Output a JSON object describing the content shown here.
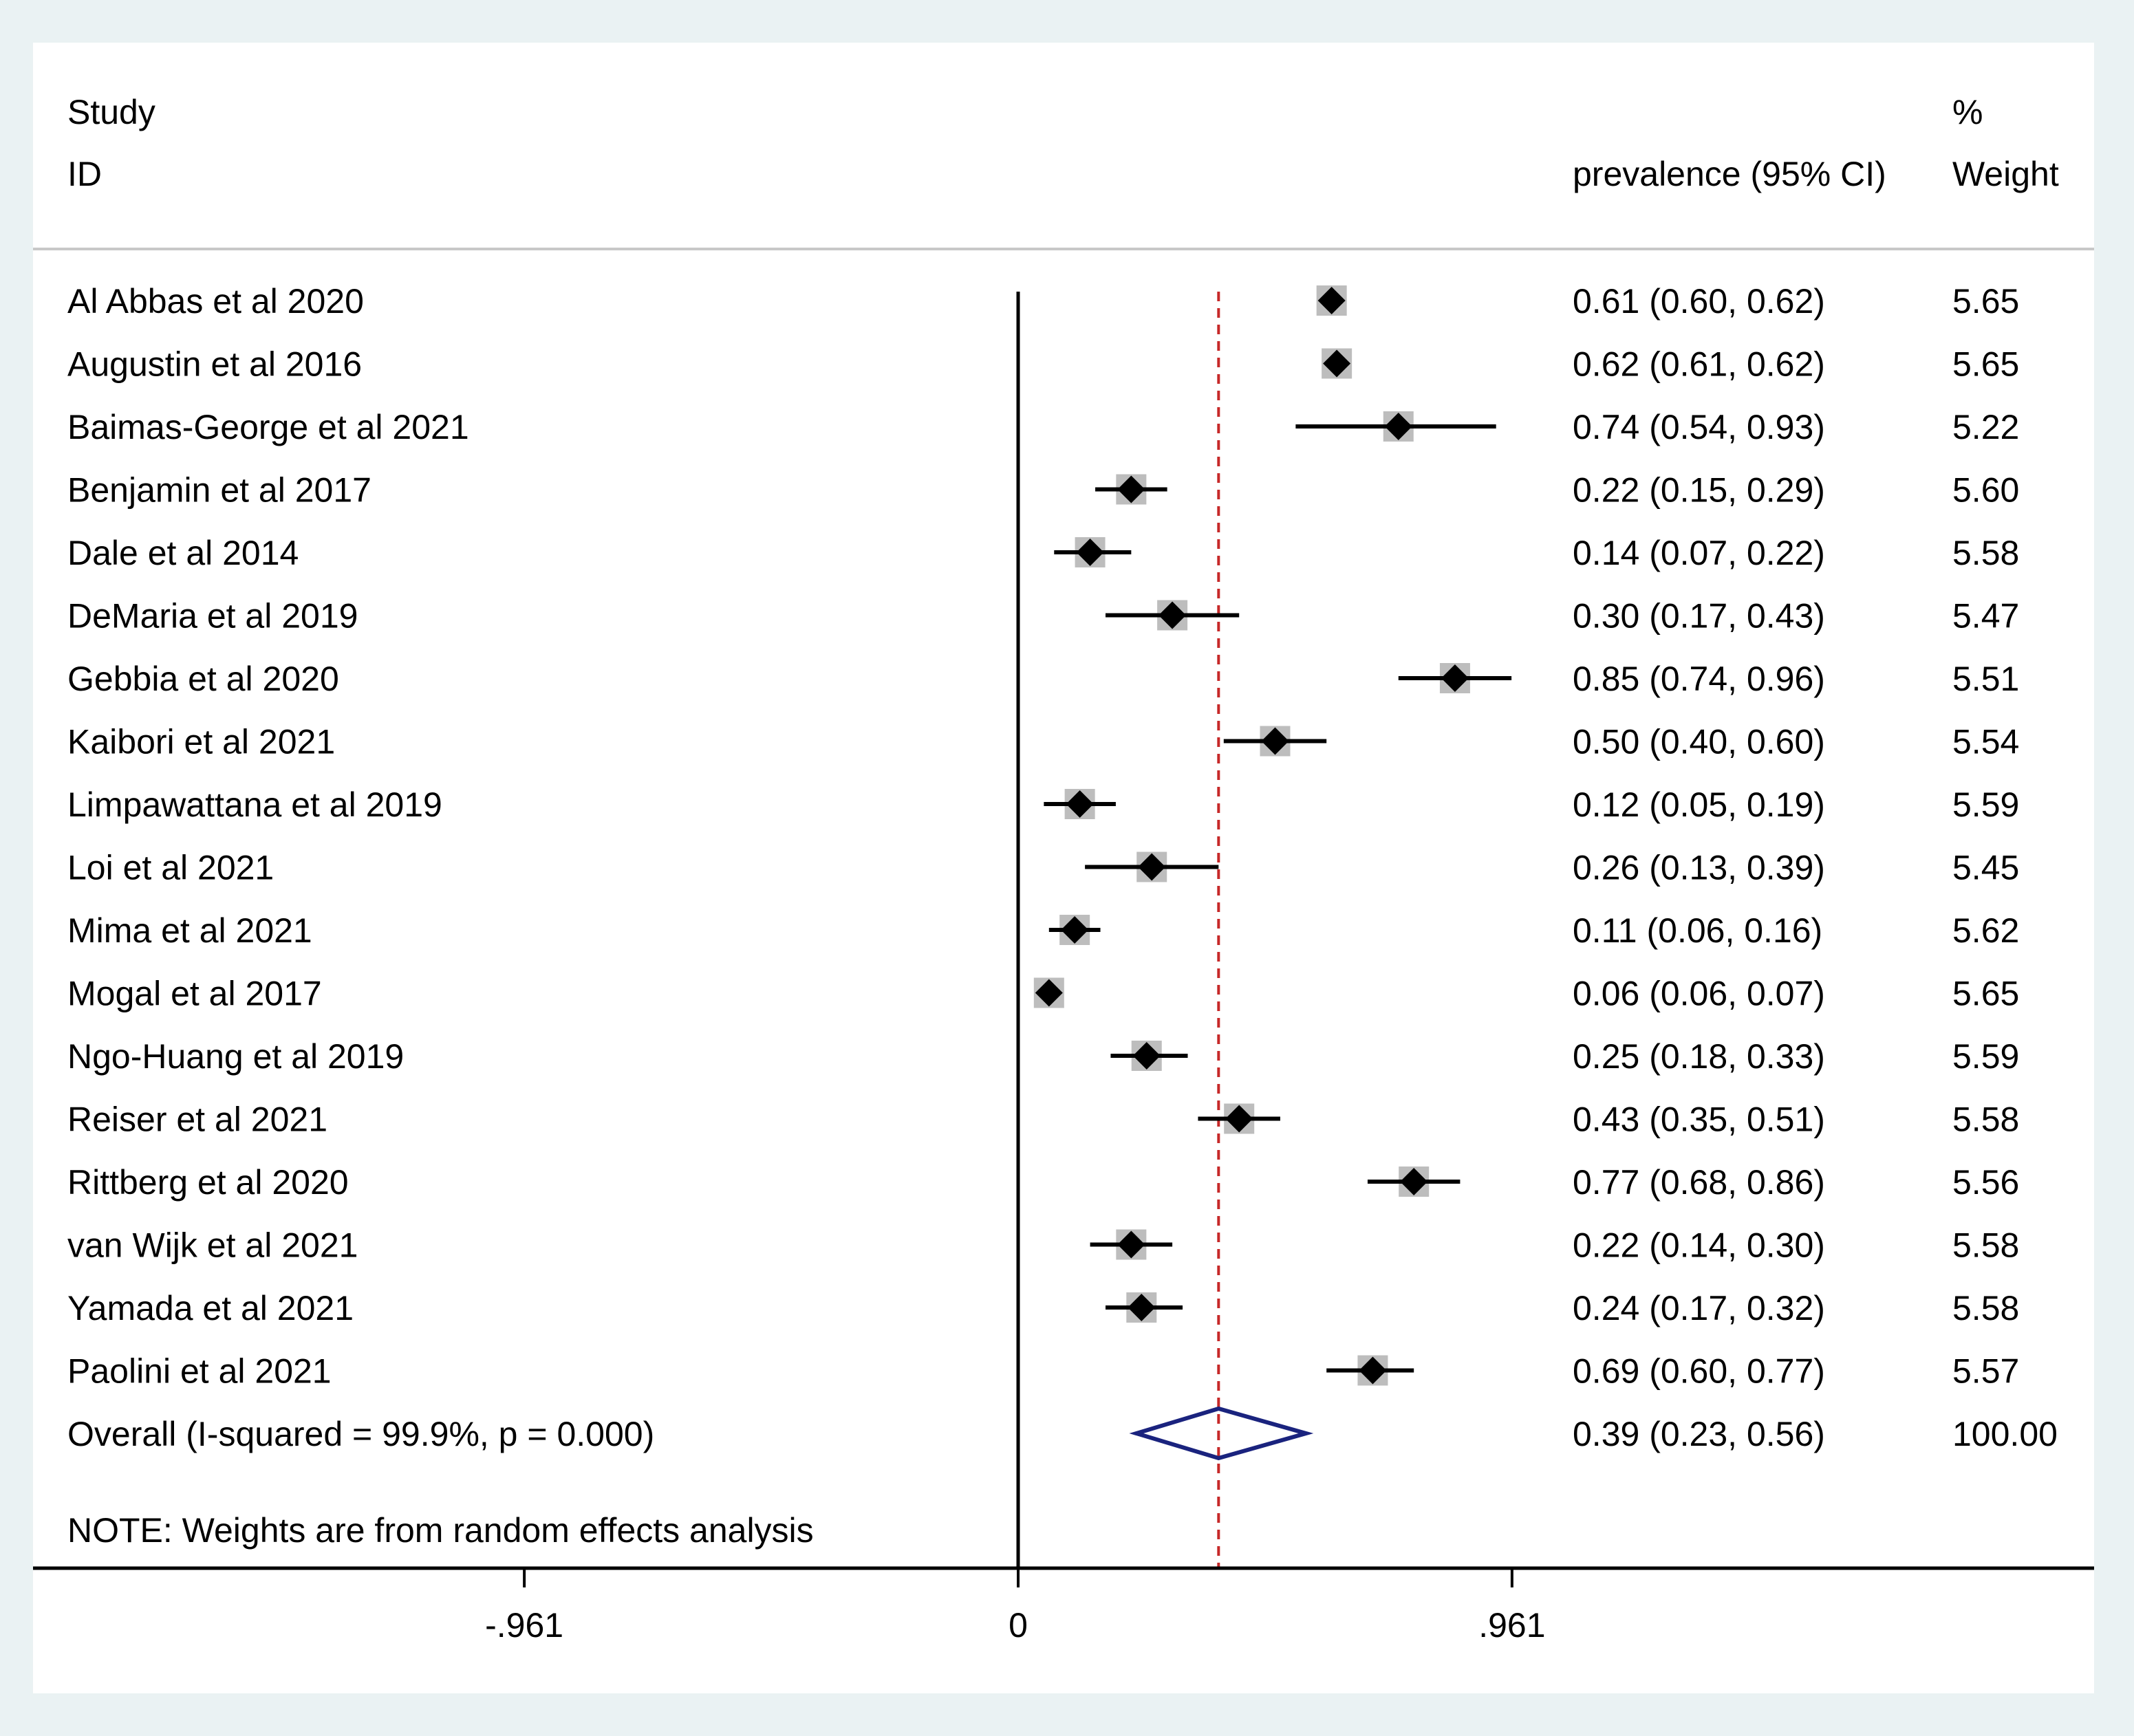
{
  "header": {
    "study_line1": "Study",
    "study_line2": "ID",
    "effect_label": "prevalence (95% CI)",
    "weight_line1": "%",
    "weight_line2": "Weight"
  },
  "chart_data": {
    "type": "forest",
    "xlabel": "",
    "x_ticks": [
      -0.961,
      0,
      0.961
    ],
    "x_tick_labels": [
      "-.961",
      "0",
      ".961"
    ],
    "xlim": [
      -1.83,
      2.03
    ],
    "null_line": 0,
    "overall_line": 0.39,
    "studies": [
      {
        "name": "Al Abbas et al 2020",
        "estimate": 0.61,
        "lower": 0.6,
        "upper": 0.62,
        "ci_text": "0.61 (0.60, 0.62)",
        "weight": "5.65"
      },
      {
        "name": "Augustin et al 2016",
        "estimate": 0.62,
        "lower": 0.61,
        "upper": 0.62,
        "ci_text": "0.62 (0.61, 0.62)",
        "weight": "5.65"
      },
      {
        "name": "Baimas-George et al 2021",
        "estimate": 0.74,
        "lower": 0.54,
        "upper": 0.93,
        "ci_text": "0.74 (0.54, 0.93)",
        "weight": "5.22"
      },
      {
        "name": "Benjamin et al 2017",
        "estimate": 0.22,
        "lower": 0.15,
        "upper": 0.29,
        "ci_text": "0.22 (0.15, 0.29)",
        "weight": "5.60"
      },
      {
        "name": "Dale et al 2014",
        "estimate": 0.14,
        "lower": 0.07,
        "upper": 0.22,
        "ci_text": "0.14 (0.07, 0.22)",
        "weight": "5.58"
      },
      {
        "name": "DeMaria et al 2019",
        "estimate": 0.3,
        "lower": 0.17,
        "upper": 0.43,
        "ci_text": "0.30 (0.17, 0.43)",
        "weight": "5.47"
      },
      {
        "name": "Gebbia et al 2020",
        "estimate": 0.85,
        "lower": 0.74,
        "upper": 0.96,
        "ci_text": "0.85 (0.74, 0.96)",
        "weight": "5.51"
      },
      {
        "name": "Kaibori et al 2021",
        "estimate": 0.5,
        "lower": 0.4,
        "upper": 0.6,
        "ci_text": "0.50 (0.40, 0.60)",
        "weight": "5.54"
      },
      {
        "name": "Limpawattana et al 2019",
        "estimate": 0.12,
        "lower": 0.05,
        "upper": 0.19,
        "ci_text": "0.12 (0.05, 0.19)",
        "weight": "5.59"
      },
      {
        "name": "Loi et al 2021",
        "estimate": 0.26,
        "lower": 0.13,
        "upper": 0.39,
        "ci_text": "0.26 (0.13, 0.39)",
        "weight": "5.45"
      },
      {
        "name": "Mima et al 2021",
        "estimate": 0.11,
        "lower": 0.06,
        "upper": 0.16,
        "ci_text": "0.11 (0.06, 0.16)",
        "weight": "5.62"
      },
      {
        "name": "Mogal et al 2017",
        "estimate": 0.06,
        "lower": 0.06,
        "upper": 0.07,
        "ci_text": "0.06 (0.06, 0.07)",
        "weight": "5.65"
      },
      {
        "name": "Ngo-Huang et al 2019",
        "estimate": 0.25,
        "lower": 0.18,
        "upper": 0.33,
        "ci_text": "0.25 (0.18, 0.33)",
        "weight": "5.59"
      },
      {
        "name": "Reiser et al 2021",
        "estimate": 0.43,
        "lower": 0.35,
        "upper": 0.51,
        "ci_text": "0.43 (0.35, 0.51)",
        "weight": "5.58"
      },
      {
        "name": "Rittberg et al 2020",
        "estimate": 0.77,
        "lower": 0.68,
        "upper": 0.86,
        "ci_text": "0.77 (0.68, 0.86)",
        "weight": "5.56"
      },
      {
        "name": "van Wijk et al 2021",
        "estimate": 0.22,
        "lower": 0.14,
        "upper": 0.3,
        "ci_text": "0.22 (0.14, 0.30)",
        "weight": "5.58"
      },
      {
        "name": "Yamada et al 2021",
        "estimate": 0.24,
        "lower": 0.17,
        "upper": 0.32,
        "ci_text": "0.24 (0.17, 0.32)",
        "weight": "5.58"
      },
      {
        "name": "Paolini et al 2021",
        "estimate": 0.69,
        "lower": 0.6,
        "upper": 0.77,
        "ci_text": "0.69 (0.60, 0.77)",
        "weight": "5.57"
      }
    ],
    "overall": {
      "name": "Overall  (I-squared = 99.9%, p = 0.000)",
      "estimate": 0.39,
      "lower": 0.23,
      "upper": 0.56,
      "ci_text": "0.39 (0.23, 0.56)",
      "weight": "100.00"
    },
    "note": "NOTE: Weights are from random effects analysis",
    "colors": {
      "ci_line": "#000000",
      "marker": "#000000",
      "weight_box": "#bdbdbd",
      "overall_diamond": "#1a237e",
      "overall_line": "#c62828",
      "axis": "#000000"
    }
  }
}
